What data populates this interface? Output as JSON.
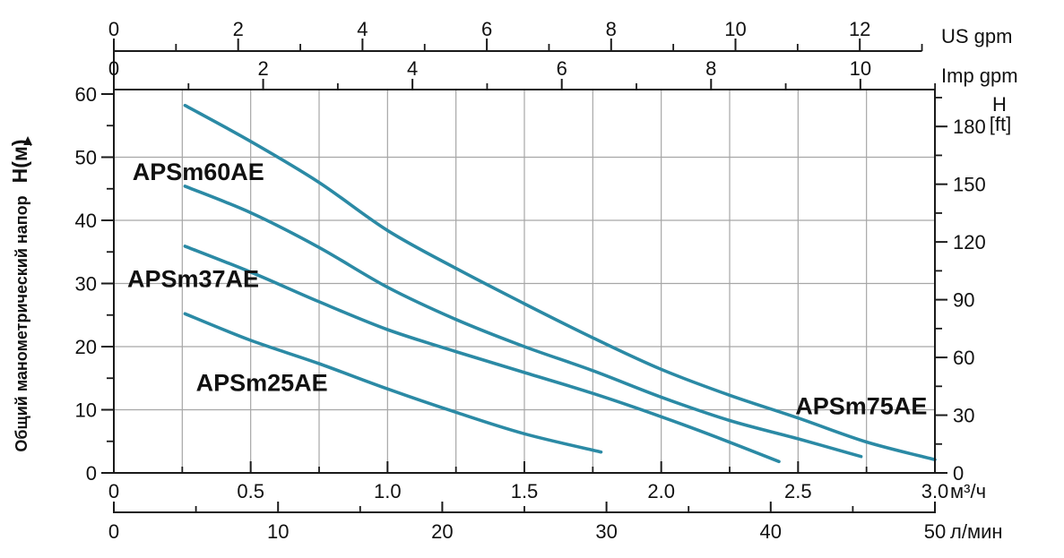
{
  "chart_data": {
    "type": "line",
    "title": "Pump head-flow performance curves",
    "colors": {
      "curve": "#2b8aa5",
      "grid": "#a6a6a6",
      "axis": "#1a1a1a",
      "text": "#111111",
      "background": "#ffffff"
    },
    "y_left": {
      "label": "Общий манометрический напор",
      "symbol": "Н(м)",
      "arrow": "▲",
      "ticks": [
        0,
        10,
        20,
        30,
        40,
        50,
        60
      ],
      "minor_step": 5,
      "range": [
        0,
        60
      ]
    },
    "y_right": {
      "symbol": "H",
      "unit_bracket": "[ft]",
      "ticks": [
        0,
        30,
        60,
        90,
        120,
        150,
        180
      ],
      "minor_step": 15,
      "range": [
        0,
        195
      ]
    },
    "x_bottom": {
      "unit": "м³/ч",
      "ticks": [
        0,
        0.5,
        1.0,
        1.5,
        2.0,
        2.5,
        3.0
      ],
      "tick_labels": [
        "0",
        "0.5",
        "1.0",
        "1.5",
        "2.0",
        "2.5",
        "3.0"
      ],
      "minor_step": 0.25,
      "range": [
        0,
        3.0
      ]
    },
    "x_bottom2": {
      "unit": "л/мин",
      "ticks": [
        0,
        10,
        20,
        30,
        40,
        50
      ],
      "minor_step": 5,
      "range": [
        0,
        50
      ]
    },
    "x_top_us": {
      "unit": "US gpm",
      "ticks": [
        0,
        2,
        4,
        6,
        8,
        10,
        12
      ],
      "minor_step": 1,
      "range": [
        0,
        13
      ],
      "m3h_per_unit": 0.227125
    },
    "x_top_imp": {
      "unit": "Imp gpm",
      "ticks": [
        0,
        2,
        4,
        6,
        8,
        10
      ],
      "minor_step": 1,
      "range": [
        0,
        11
      ],
      "m3h_per_unit": 0.2727655
    },
    "series": [
      {
        "name": "APSm75AE",
        "label_anchor": {
          "x": 2.49,
          "y": 9.3
        },
        "points": [
          [
            0.26,
            58.2
          ],
          [
            0.5,
            52.5
          ],
          [
            0.75,
            46.0
          ],
          [
            1.0,
            38.4
          ],
          [
            1.25,
            32.4
          ],
          [
            1.5,
            26.8
          ],
          [
            1.75,
            21.4
          ],
          [
            2.0,
            16.4
          ],
          [
            2.25,
            12.3
          ],
          [
            2.5,
            8.7
          ],
          [
            2.75,
            4.9
          ],
          [
            3.0,
            2.1
          ]
        ]
      },
      {
        "name": "APSm60AE",
        "label_anchor": {
          "x": 0.068,
          "y": 46.4
        },
        "points": [
          [
            0.26,
            45.4
          ],
          [
            0.5,
            41.2
          ],
          [
            0.75,
            35.7
          ],
          [
            1.0,
            29.4
          ],
          [
            1.25,
            24.3
          ],
          [
            1.5,
            20.0
          ],
          [
            1.75,
            16.2
          ],
          [
            2.0,
            12.0
          ],
          [
            2.25,
            8.3
          ],
          [
            2.5,
            5.4
          ],
          [
            2.73,
            2.6
          ]
        ]
      },
      {
        "name": "APSm37AE",
        "label_anchor": {
          "x": 0.049,
          "y": 29.4
        },
        "points": [
          [
            0.26,
            35.9
          ],
          [
            0.5,
            31.8
          ],
          [
            0.75,
            27.1
          ],
          [
            1.0,
            22.7
          ],
          [
            1.25,
            19.2
          ],
          [
            1.5,
            15.9
          ],
          [
            1.75,
            12.6
          ],
          [
            2.0,
            8.9
          ],
          [
            2.2,
            5.7
          ],
          [
            2.43,
            1.8
          ]
        ]
      },
      {
        "name": "APSm25AE",
        "label_anchor": {
          "x": 0.3,
          "y": 13.0
        },
        "points": [
          [
            0.26,
            25.2
          ],
          [
            0.5,
            21.0
          ],
          [
            0.75,
            17.3
          ],
          [
            1.0,
            13.3
          ],
          [
            1.25,
            9.6
          ],
          [
            1.5,
            6.2
          ],
          [
            1.78,
            3.3
          ]
        ]
      }
    ]
  }
}
